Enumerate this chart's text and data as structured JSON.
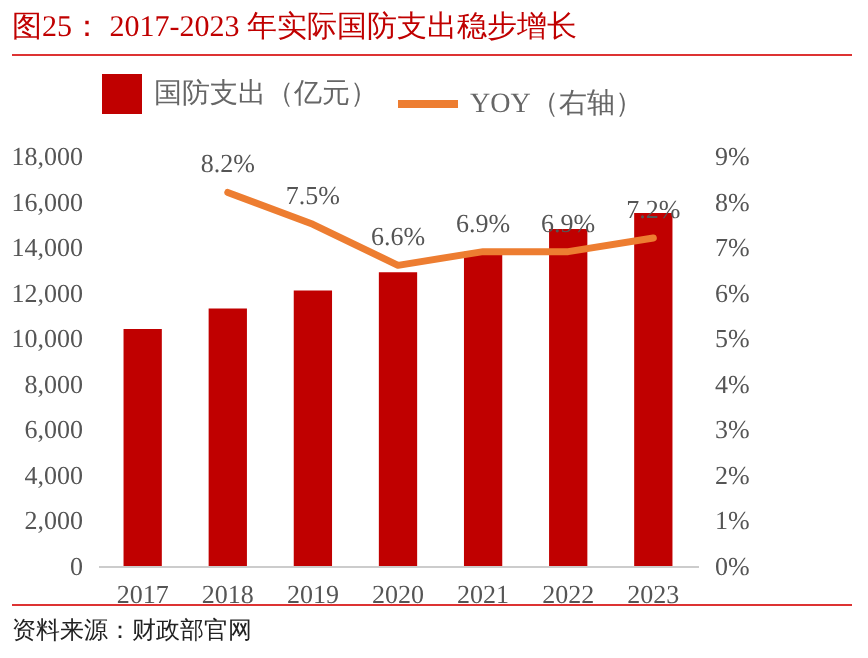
{
  "chart_data": {
    "type": "bar",
    "title": "图25：  2017-2023 年实际国防支出稳步增长",
    "categories": [
      "2017",
      "2018",
      "2019",
      "2020",
      "2021",
      "2022",
      "2023"
    ],
    "series": [
      {
        "name": "国防支出（亿元）",
        "color": "#c00000",
        "values": [
          10400,
          11300,
          12100,
          12900,
          13800,
          14800,
          15500
        ]
      },
      {
        "name": "YOY（右轴）",
        "type": "line",
        "axis": "y2",
        "color": "#ed7d31",
        "values": [
          null,
          8.2,
          7.5,
          6.6,
          6.9,
          6.9,
          7.2
        ],
        "value_labels": [
          null,
          "8.2%",
          "7.5%",
          "6.6%",
          "6.9%",
          "6.9%",
          "7.2%"
        ]
      }
    ],
    "ylim": [
      0,
      18000
    ],
    "yticks": [
      0,
      {
        "value": 2000,
        "label": "2,000"
      },
      {
        "value": 4000,
        "label": "4,000"
      },
      {
        "value": 6000,
        "label": "6,000"
      },
      {
        "value": 8000,
        "label": "8,000"
      },
      {
        "value": 10000,
        "label": "10,000"
      },
      {
        "value": 12000,
        "label": "12,000"
      },
      {
        "value": 14000,
        "label": "14,000"
      },
      {
        "value": 16000,
        "label": "16,000"
      },
      {
        "value": 18000,
        "label": "18,000"
      }
    ],
    "y2lim": [
      0,
      9
    ],
    "y2ticks": [
      {
        "value": 0,
        "label": "0%"
      },
      {
        "value": 1,
        "label": "1%"
      },
      {
        "value": 2,
        "label": "2%"
      },
      {
        "value": 3,
        "label": "3%"
      },
      {
        "value": 4,
        "label": "4%"
      },
      {
        "value": 5,
        "label": "5%"
      },
      {
        "value": 6,
        "label": "6%"
      },
      {
        "value": 7,
        "label": "7%"
      },
      {
        "value": 8,
        "label": "8%"
      },
      {
        "value": 9,
        "label": "9%"
      }
    ],
    "grid": false,
    "legend": "top",
    "annotations": [
      "资料来源：财政部官网"
    ]
  }
}
